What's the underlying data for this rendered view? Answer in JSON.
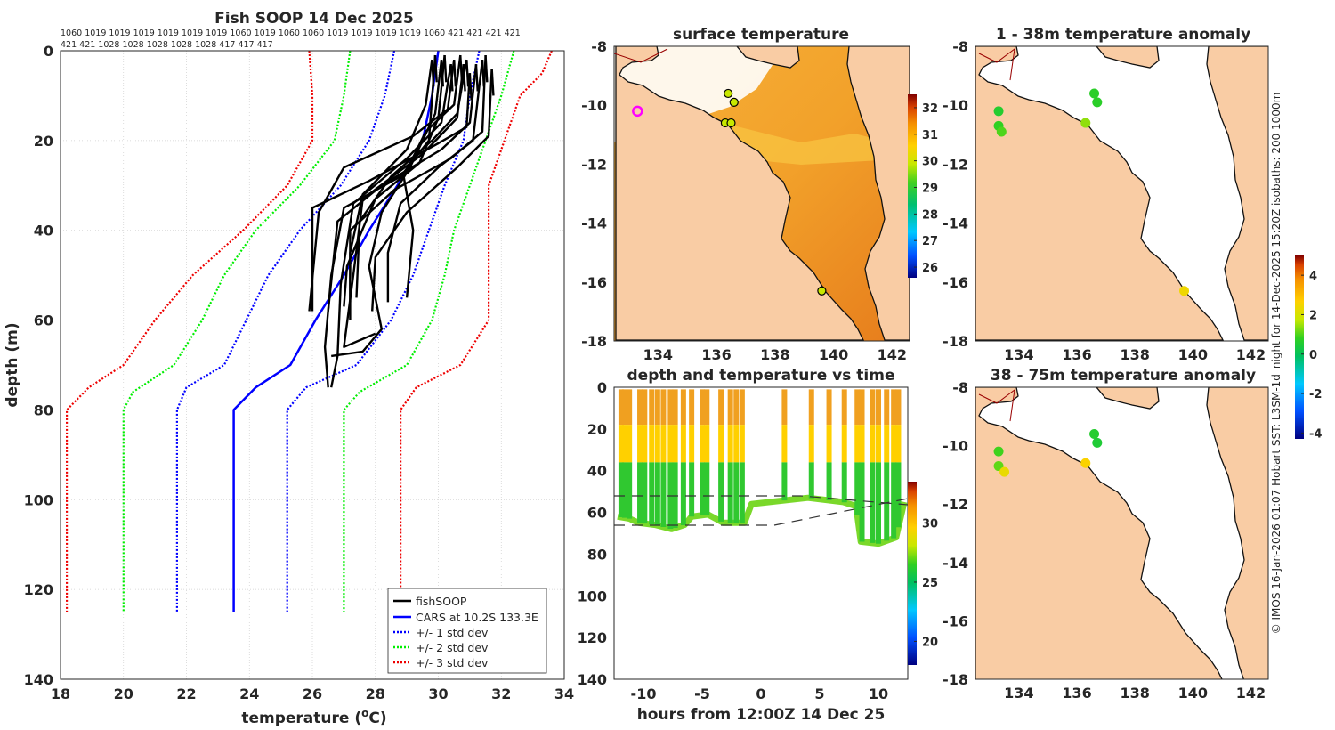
{
  "page": {
    "credit": "© IMOS 16-Jan-2026 01:07 Hobart SST: L3SM-1d_night for 14-Dec-2025 15:20Z isobaths: 200  1000m"
  },
  "colors": {
    "fish": "#000000",
    "cars": "#0000ff",
    "sd1": "#0000ff",
    "sd2": "#00ee00",
    "sd3": "#ee0000",
    "land": "#f9cca4",
    "sea_warm": "#f3a528"
  },
  "chart_data": [
    {
      "id": "profile",
      "type": "line",
      "title": "Fish SOOP 14 Dec 2025",
      "xlabel": "temperature (°C)",
      "xlabel_main": "temperature (",
      "xlabel_sup": "o",
      "xlabel_unit": "C)",
      "ylabel": "depth (m)",
      "xlim": [
        18,
        34
      ],
      "ylim": [
        0,
        140
      ],
      "yreversed": true,
      "xticks": [
        "18",
        "20",
        "22",
        "24",
        "26",
        "28",
        "30",
        "32",
        "34"
      ],
      "yticks": [
        "0",
        "20",
        "40",
        "60",
        "80",
        "100",
        "120",
        "140"
      ],
      "header_row1": "1060 1019 1019 1019 1019 1019 1019 1060 1019 1060 1060 1019 1019 1019 1019 1060 421  421  421 421",
      "header_row2": "421  421 1028 1028 1028 1028 1028 417  417  417",
      "legend": [
        "fishSOOP",
        "CARS at 10.2S 133.3E",
        "+/- 1 std dev",
        "+/- 2 std dev",
        "+/- 3 std dev"
      ],
      "series": [
        {
          "name": "CARS",
          "style": "solid",
          "color": "#0000ff",
          "points": [
            [
              30.0,
              0
            ],
            [
              29.8,
              10
            ],
            [
              29.5,
              20
            ],
            [
              28.7,
              30
            ],
            [
              27.8,
              40
            ],
            [
              27.0,
              50
            ],
            [
              26.1,
              60
            ],
            [
              25.3,
              70
            ],
            [
              24.2,
              75
            ],
            [
              23.5,
              80
            ],
            [
              23.5,
              125
            ]
          ]
        },
        {
          "name": "-1sd",
          "style": "dotted",
          "color": "#0000ff",
          "points": [
            [
              28.6,
              0
            ],
            [
              28.3,
              10
            ],
            [
              27.8,
              20
            ],
            [
              26.9,
              30
            ],
            [
              25.6,
              40
            ],
            [
              24.6,
              50
            ],
            [
              23.9,
              60
            ],
            [
              23.2,
              70
            ],
            [
              22.0,
              75
            ],
            [
              21.7,
              80
            ],
            [
              21.7,
              125
            ]
          ]
        },
        {
          "name": "+1sd",
          "style": "dotted",
          "color": "#0000ff",
          "points": [
            [
              31.3,
              0
            ],
            [
              31.0,
              10
            ],
            [
              30.8,
              20
            ],
            [
              30.2,
              30
            ],
            [
              29.7,
              40
            ],
            [
              29.2,
              50
            ],
            [
              28.5,
              60
            ],
            [
              27.4,
              70
            ],
            [
              25.8,
              75
            ],
            [
              25.2,
              80
            ],
            [
              25.2,
              125
            ]
          ]
        },
        {
          "name": "-2sd",
          "style": "dotted",
          "color": "#00ee00",
          "points": [
            [
              27.2,
              0
            ],
            [
              27.0,
              10
            ],
            [
              26.7,
              20
            ],
            [
              25.6,
              30
            ],
            [
              24.2,
              40
            ],
            [
              23.2,
              50
            ],
            [
              22.5,
              60
            ],
            [
              21.6,
              70
            ],
            [
              20.3,
              76
            ],
            [
              20.0,
              80
            ],
            [
              20.0,
              125
            ]
          ]
        },
        {
          "name": "+2sd",
          "style": "dotted",
          "color": "#00ee00",
          "points": [
            [
              32.4,
              0
            ],
            [
              32.0,
              10
            ],
            [
              31.5,
              20
            ],
            [
              31.0,
              30
            ],
            [
              30.5,
              40
            ],
            [
              30.2,
              50
            ],
            [
              29.8,
              60
            ],
            [
              29.0,
              70
            ],
            [
              27.5,
              76
            ],
            [
              27.0,
              80
            ],
            [
              27.0,
              125
            ]
          ]
        },
        {
          "name": "-3sd",
          "style": "dotted",
          "color": "#ee0000",
          "points": [
            [
              25.9,
              0
            ],
            [
              26.0,
              10
            ],
            [
              26.0,
              20
            ],
            [
              25.2,
              30
            ],
            [
              23.8,
              40
            ],
            [
              22.2,
              50
            ],
            [
              21.0,
              60
            ],
            [
              20.0,
              70
            ],
            [
              18.9,
              75
            ],
            [
              18.2,
              80
            ],
            [
              18.2,
              125
            ]
          ]
        },
        {
          "name": "+3sd",
          "style": "dotted",
          "color": "#ee0000",
          "points": [
            [
              33.6,
              0
            ],
            [
              33.3,
              5
            ],
            [
              32.6,
              10
            ],
            [
              32.1,
              20
            ],
            [
              31.6,
              30
            ],
            [
              31.6,
              50
            ],
            [
              31.6,
              60
            ],
            [
              30.7,
              70
            ],
            [
              29.3,
              75
            ],
            [
              28.8,
              80
            ],
            [
              28.8,
              125
            ]
          ]
        }
      ],
      "fish_profiles": [
        [
          [
            29.8,
            2
          ],
          [
            29.6,
            12
          ],
          [
            29.0,
            22
          ],
          [
            27.6,
            32
          ],
          [
            27.2,
            45
          ],
          [
            27.2,
            56
          ]
        ],
        [
          [
            30.2,
            1
          ],
          [
            30.0,
            15
          ],
          [
            29.4,
            25
          ],
          [
            28.0,
            33
          ],
          [
            27.1,
            48
          ],
          [
            27.0,
            57
          ]
        ],
        [
          [
            30.9,
            2
          ],
          [
            30.6,
            14
          ],
          [
            29.8,
            20
          ],
          [
            28.5,
            28
          ],
          [
            27.5,
            38
          ],
          [
            27.4,
            55
          ]
        ],
        [
          [
            31.2,
            3
          ],
          [
            31.0,
            16
          ],
          [
            30.1,
            22
          ],
          [
            28.2,
            30
          ],
          [
            26.8,
            38
          ],
          [
            26.5,
            58
          ]
        ],
        [
          [
            31.5,
            1
          ],
          [
            31.4,
            18
          ],
          [
            30.4,
            24
          ],
          [
            28.6,
            31
          ],
          [
            27.2,
            40
          ],
          [
            27.2,
            60
          ]
        ],
        [
          [
            31.7,
            4
          ],
          [
            31.6,
            19
          ],
          [
            30.6,
            26
          ],
          [
            29.0,
            36
          ],
          [
            28.0,
            46
          ],
          [
            27.9,
            58
          ]
        ],
        [
          [
            30.5,
            2
          ],
          [
            30.3,
            13
          ],
          [
            29.2,
            19
          ],
          [
            27.0,
            26
          ],
          [
            26.2,
            36
          ],
          [
            25.9,
            58
          ]
        ],
        [
          [
            31.0,
            5
          ],
          [
            30.9,
            17
          ],
          [
            29.9,
            21
          ],
          [
            27.8,
            29
          ],
          [
            26.0,
            35
          ],
          [
            26.0,
            58
          ]
        ],
        [
          [
            29.9,
            1
          ],
          [
            29.7,
            20
          ],
          [
            28.8,
            28
          ],
          [
            27.0,
            35
          ],
          [
            26.6,
            50
          ],
          [
            26.4,
            66
          ],
          [
            26.5,
            75
          ]
        ],
        [
          [
            30.4,
            3
          ],
          [
            30.1,
            16
          ],
          [
            29.0,
            24
          ],
          [
            27.3,
            34
          ],
          [
            26.9,
            52
          ],
          [
            26.8,
            68
          ],
          [
            26.6,
            75
          ]
        ],
        [
          [
            31.4,
            2
          ],
          [
            31.1,
            20
          ],
          [
            30.0,
            26
          ],
          [
            28.8,
            34
          ],
          [
            28.4,
            45
          ],
          [
            28.4,
            56
          ]
        ],
        [
          [
            30.7,
            1
          ],
          [
            30.5,
            12
          ],
          [
            29.6,
            18
          ],
          [
            28.9,
            28
          ],
          [
            29.2,
            40
          ],
          [
            29.0,
            55
          ]
        ],
        [
          [
            30.1,
            2
          ],
          [
            29.9,
            14
          ],
          [
            29.1,
            26
          ],
          [
            28.2,
            36
          ],
          [
            27.8,
            48
          ],
          [
            28.2,
            62
          ],
          [
            27.6,
            67
          ],
          [
            26.6,
            68
          ]
        ],
        [
          [
            30.8,
            3
          ],
          [
            30.6,
            15
          ],
          [
            29.5,
            23
          ],
          [
            27.6,
            33
          ],
          [
            27.3,
            50
          ],
          [
            27.0,
            66
          ],
          [
            28.0,
            63
          ]
        ]
      ],
      "annotation": ""
    },
    {
      "id": "sst",
      "type": "heatmap",
      "title": "surface temperature",
      "xlim": [
        132.5,
        142.6
      ],
      "ylim": [
        -18,
        -8
      ],
      "xticks": [
        "134",
        "136",
        "138",
        "140",
        "142"
      ],
      "yticks": [
        "-8",
        "-10",
        "-12",
        "-14",
        "-16",
        "-18"
      ],
      "colorbar": {
        "range": [
          25.6,
          32.5
        ],
        "ticks": [
          "26",
          "27",
          "28",
          "29",
          "30",
          "31",
          "32"
        ]
      }
    },
    {
      "id": "anom1",
      "type": "heatmap",
      "title": "1 - 38m temperature anomaly",
      "xlim": [
        132.5,
        142.6
      ],
      "ylim": [
        -18,
        -8
      ],
      "xticks": [
        "134",
        "136",
        "138",
        "140",
        "142"
      ],
      "yticks": [
        "-8",
        "-10",
        "-12",
        "-14",
        "-16",
        "-18"
      ],
      "colorbar": {
        "range": [
          -4.3,
          5
        ],
        "ticks": [
          "-4",
          "-2",
          "0",
          "2",
          "4"
        ]
      },
      "points": [
        [
          133.3,
          -10.2,
          0.6
        ],
        [
          133.3,
          -10.7,
          0.8
        ],
        [
          133.4,
          -10.9,
          1.0
        ],
        [
          136.6,
          -9.6,
          0.7
        ],
        [
          136.7,
          -9.9,
          0.7
        ],
        [
          136.3,
          -10.6,
          1.4
        ],
        [
          139.7,
          -16.3,
          2.4
        ]
      ]
    },
    {
      "id": "anom2",
      "type": "heatmap",
      "title": "38 - 75m temperature anomaly",
      "xlim": [
        132.5,
        142.6
      ],
      "ylim": [
        -18,
        -8
      ],
      "xticks": [
        "134",
        "136",
        "138",
        "140",
        "142"
      ],
      "yticks": [
        "-8",
        "-10",
        "-12",
        "-14",
        "-16",
        "-18"
      ],
      "points": [
        [
          133.3,
          -10.2,
          0.9
        ],
        [
          133.3,
          -10.7,
          1.1
        ],
        [
          133.5,
          -10.9,
          2.3
        ],
        [
          136.6,
          -9.6,
          0.6
        ],
        [
          136.7,
          -9.9,
          0.5
        ],
        [
          136.3,
          -10.6,
          2.6
        ]
      ]
    },
    {
      "id": "dtime",
      "type": "scatter",
      "title": "depth and temperature vs time",
      "xlabel": "hours from 12:00Z 14 Dec 25",
      "xlim": [
        -12.5,
        12.5
      ],
      "ylim": [
        0,
        140
      ],
      "yreversed": true,
      "xticks": [
        "-10",
        "-5",
        "0",
        "5",
        "10"
      ],
      "yticks": [
        "0",
        "20",
        "40",
        "60",
        "80",
        "100",
        "120",
        "140"
      ],
      "colorbar": {
        "range": [
          18,
          33.5
        ],
        "ticks": [
          "20",
          "25",
          "30"
        ]
      },
      "casts": [
        -11.9,
        -11.6,
        -11.2,
        -10.3,
        -9.9,
        -9.3,
        -8.8,
        -8.3,
        -7.7,
        -7.3,
        -6.6,
        -5.9,
        -5.0,
        -4.6,
        -3.4,
        -2.6,
        -2.1,
        -1.6,
        2.0,
        4.3,
        5.8,
        7.1,
        8.2,
        8.6,
        9.5,
        10.0,
        10.7,
        11.3,
        11.7
      ],
      "bottom": [
        [
          -12.2,
          62
        ],
        [
          -11.2,
          63
        ],
        [
          -10.4,
          65
        ],
        [
          -9.0,
          66
        ],
        [
          -7.6,
          68
        ],
        [
          -6.5,
          66
        ],
        [
          -5.9,
          62
        ],
        [
          -4.5,
          61
        ],
        [
          -3.2,
          65
        ],
        [
          -1.4,
          65
        ],
        [
          -0.8,
          56
        ],
        [
          4.0,
          53
        ],
        [
          7.0,
          55
        ],
        [
          8.1,
          57
        ],
        [
          8.5,
          74
        ],
        [
          10.0,
          75
        ],
        [
          11.5,
          72
        ],
        [
          12.2,
          55
        ]
      ]
    }
  ]
}
